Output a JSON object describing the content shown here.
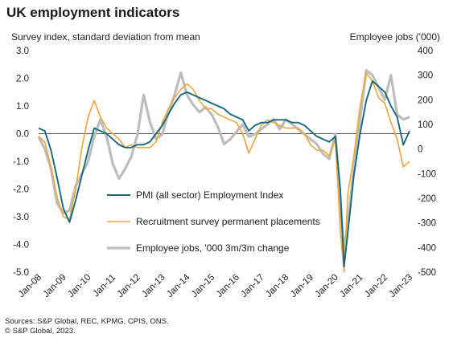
{
  "header": {
    "title": "UK employment indicators",
    "left_axis_title": "Survey index, standard deviation from mean",
    "right_axis_title": "Employee jobs ('000)"
  },
  "footer": {
    "line1": "Sources: S&P Global, REC, KPMG, CPIS, ONS.",
    "line2": "© S&P Global, 2023."
  },
  "colors": {
    "pmi": "#16697a",
    "recruitment": "#f0a53a",
    "jobs": "#bdbdbd",
    "zero_line": "#555555",
    "axis_text": "#222222"
  },
  "chart_data": {
    "type": "line",
    "grid": false,
    "legend_position": "center-left",
    "x_tick_labels": [
      "Jan-08",
      "Jan-09",
      "Jan-10",
      "Jan-11",
      "Jan-12",
      "Jan-13",
      "Jan-14",
      "Jan-15",
      "Jan-16",
      "Jan-17",
      "Jan-18",
      "Jan-19",
      "Jan-20",
      "Jan-21",
      "Jan-22",
      "Jan-23"
    ],
    "x_range": [
      2008.0,
      2023.0
    ],
    "left_axis": {
      "ylim": [
        -5.0,
        3.0
      ],
      "ticks": [
        "3.0",
        "2.0",
        "1.0",
        "0.0",
        "-1.0",
        "-2.0",
        "-3.0",
        "-4.0",
        "-5.0"
      ]
    },
    "right_axis": {
      "ylim": [
        -500,
        400
      ],
      "ticks": [
        "400",
        "300",
        "200",
        "100",
        "0",
        "-100",
        "-200",
        "-300",
        "-400",
        "-500"
      ]
    },
    "series": [
      {
        "name": "PMI (all sector) Employment Index",
        "axis": "left",
        "x": [
          2008.0,
          2008.25,
          2008.5,
          2008.75,
          2009.0,
          2009.25,
          2009.5,
          2009.75,
          2010.0,
          2010.25,
          2010.5,
          2010.75,
          2011.0,
          2011.25,
          2011.5,
          2011.75,
          2012.0,
          2012.25,
          2012.5,
          2012.75,
          2013.0,
          2013.25,
          2013.5,
          2013.75,
          2014.0,
          2014.25,
          2014.5,
          2014.75,
          2015.0,
          2015.25,
          2015.5,
          2015.75,
          2016.0,
          2016.25,
          2016.5,
          2016.75,
          2017.0,
          2017.25,
          2017.5,
          2017.75,
          2018.0,
          2018.25,
          2018.5,
          2018.75,
          2019.0,
          2019.25,
          2019.5,
          2019.75,
          2020.0,
          2020.2,
          2020.35,
          2020.5,
          2020.75,
          2021.0,
          2021.25,
          2021.5,
          2021.75,
          2022.0,
          2022.25,
          2022.5,
          2022.75,
          2023.0
        ],
        "values": [
          0.2,
          0.1,
          -0.6,
          -1.6,
          -2.7,
          -3.2,
          -2.4,
          -1.5,
          -0.6,
          0.2,
          0.1,
          0.0,
          -0.2,
          -0.4,
          -0.5,
          -0.5,
          -0.4,
          -0.4,
          -0.3,
          0.0,
          0.3,
          0.7,
          1.1,
          1.4,
          1.5,
          1.4,
          1.3,
          1.2,
          1.1,
          1.0,
          0.9,
          0.7,
          0.6,
          0.5,
          0.1,
          0.3,
          0.4,
          0.4,
          0.5,
          0.5,
          0.5,
          0.4,
          0.4,
          0.3,
          0.1,
          -0.1,
          -0.2,
          -0.3,
          -0.1,
          -2.0,
          -4.8,
          -3.6,
          -1.5,
          0.0,
          1.2,
          1.9,
          1.7,
          1.5,
          1.0,
          0.6,
          -0.4,
          0.1
        ]
      },
      {
        "name": "Recruitment survey permanent placements",
        "axis": "left",
        "x": [
          2008.0,
          2008.25,
          2008.5,
          2008.75,
          2009.0,
          2009.25,
          2009.5,
          2009.75,
          2010.0,
          2010.25,
          2010.5,
          2010.75,
          2011.0,
          2011.25,
          2011.5,
          2011.75,
          2012.0,
          2012.25,
          2012.5,
          2012.75,
          2013.0,
          2013.25,
          2013.5,
          2013.75,
          2014.0,
          2014.25,
          2014.5,
          2014.75,
          2015.0,
          2015.25,
          2015.5,
          2015.75,
          2016.0,
          2016.25,
          2016.5,
          2016.75,
          2017.0,
          2017.25,
          2017.5,
          2017.75,
          2018.0,
          2018.25,
          2018.5,
          2018.75,
          2019.0,
          2019.25,
          2019.5,
          2019.75,
          2020.0,
          2020.2,
          2020.35,
          2020.5,
          2020.75,
          2021.0,
          2021.25,
          2021.5,
          2021.75,
          2022.0,
          2022.25,
          2022.5,
          2022.75,
          2023.0
        ],
        "values": [
          -0.1,
          -0.3,
          -1.2,
          -2.3,
          -3.0,
          -3.1,
          -2.0,
          -0.5,
          0.6,
          1.2,
          0.6,
          0.2,
          0.0,
          -0.2,
          -0.5,
          -0.4,
          -0.5,
          -0.5,
          -0.5,
          -0.3,
          0.4,
          0.9,
          1.3,
          1.6,
          1.8,
          1.6,
          1.2,
          0.9,
          0.9,
          0.7,
          0.6,
          0.5,
          0.4,
          0.0,
          -0.7,
          -0.2,
          0.3,
          0.5,
          0.4,
          0.3,
          0.2,
          0.2,
          0.2,
          0.0,
          -0.4,
          -0.6,
          -0.6,
          -0.8,
          -0.2,
          -3.5,
          -5.0,
          -2.2,
          -0.8,
          1.0,
          2.2,
          1.9,
          1.3,
          1.1,
          0.4,
          -0.2,
          -1.2,
          -1.0
        ]
      },
      {
        "name": "Employee jobs, '000 3m/3m change",
        "axis": "right",
        "x": [
          2008.0,
          2008.25,
          2008.5,
          2008.75,
          2009.0,
          2009.25,
          2009.5,
          2009.75,
          2010.0,
          2010.25,
          2010.5,
          2010.75,
          2011.0,
          2011.25,
          2011.5,
          2011.75,
          2012.0,
          2012.25,
          2012.5,
          2012.75,
          2013.0,
          2013.25,
          2013.5,
          2013.75,
          2014.0,
          2014.25,
          2014.5,
          2014.75,
          2015.0,
          2015.25,
          2015.5,
          2015.75,
          2016.0,
          2016.25,
          2016.5,
          2016.75,
          2017.0,
          2017.25,
          2017.5,
          2017.75,
          2018.0,
          2018.25,
          2018.5,
          2018.75,
          2019.0,
          2019.25,
          2019.5,
          2019.75,
          2020.0,
          2020.2,
          2020.35,
          2020.5,
          2020.75,
          2021.0,
          2021.25,
          2021.5,
          2021.75,
          2022.0,
          2022.25,
          2022.5,
          2022.75,
          2023.0
        ],
        "values": [
          50,
          0,
          -80,
          -220,
          -260,
          -250,
          -150,
          -100,
          -50,
          50,
          120,
          50,
          -60,
          -120,
          -80,
          -30,
          60,
          220,
          110,
          40,
          60,
          150,
          220,
          310,
          220,
          180,
          150,
          170,
          140,
          90,
          20,
          40,
          70,
          100,
          50,
          60,
          80,
          100,
          120,
          80,
          120,
          100,
          80,
          60,
          40,
          20,
          -20,
          -40,
          60,
          -200,
          -420,
          -300,
          -80,
          120,
          320,
          300,
          250,
          200,
          300,
          140,
          120,
          130
        ]
      }
    ]
  }
}
